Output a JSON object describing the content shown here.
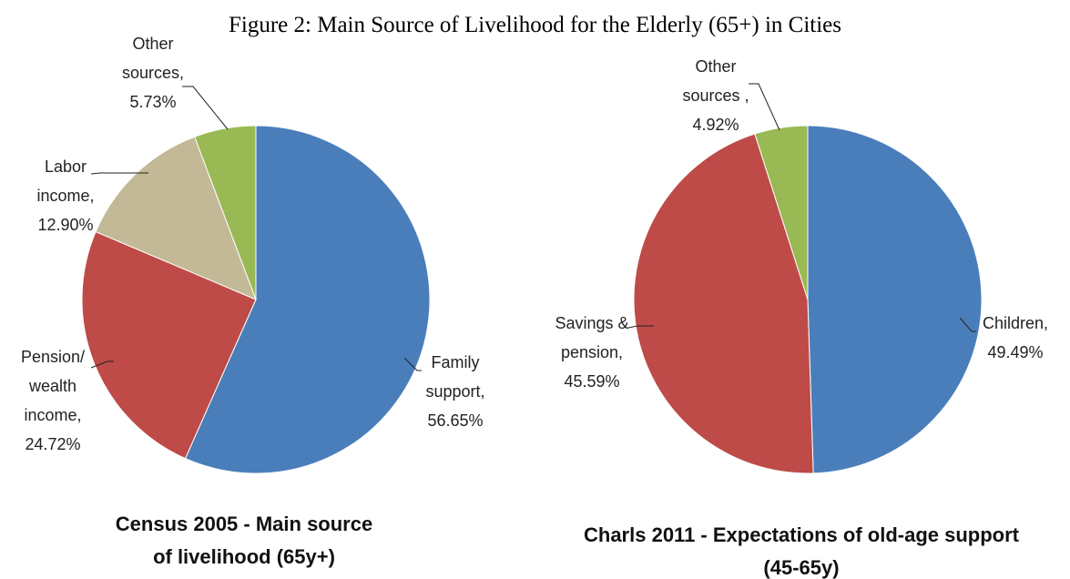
{
  "title": "Figure 2: Main Source of Livelihood for the Elderly (65+) in Cities",
  "chart_data": [
    {
      "type": "pie",
      "title": "Census 2005 - Main source of livelihood (65y+)",
      "categories": [
        "Family support,",
        "Pension/ wealth income,",
        "Labor income,",
        "Other sources,"
      ],
      "values": [
        56.65,
        24.72,
        12.9,
        5.73
      ],
      "value_labels": [
        "56.65%",
        "24.72%",
        "12.90%",
        "5.73%"
      ],
      "colors": [
        "#4a7ebb",
        "#be4b48",
        "#c3b996",
        "#98b954"
      ]
    },
    {
      "type": "pie",
      "title": "Charls 2011 - Expectations of old-age support (45-65y)",
      "categories": [
        "Children,",
        "Savings & pension,",
        "Other sources ,"
      ],
      "values": [
        49.49,
        45.59,
        4.92
      ],
      "value_labels": [
        "49.49%",
        "45.59%",
        "4.92%"
      ],
      "colors": [
        "#4a7ebb",
        "#be4b48",
        "#98b954"
      ]
    }
  ]
}
